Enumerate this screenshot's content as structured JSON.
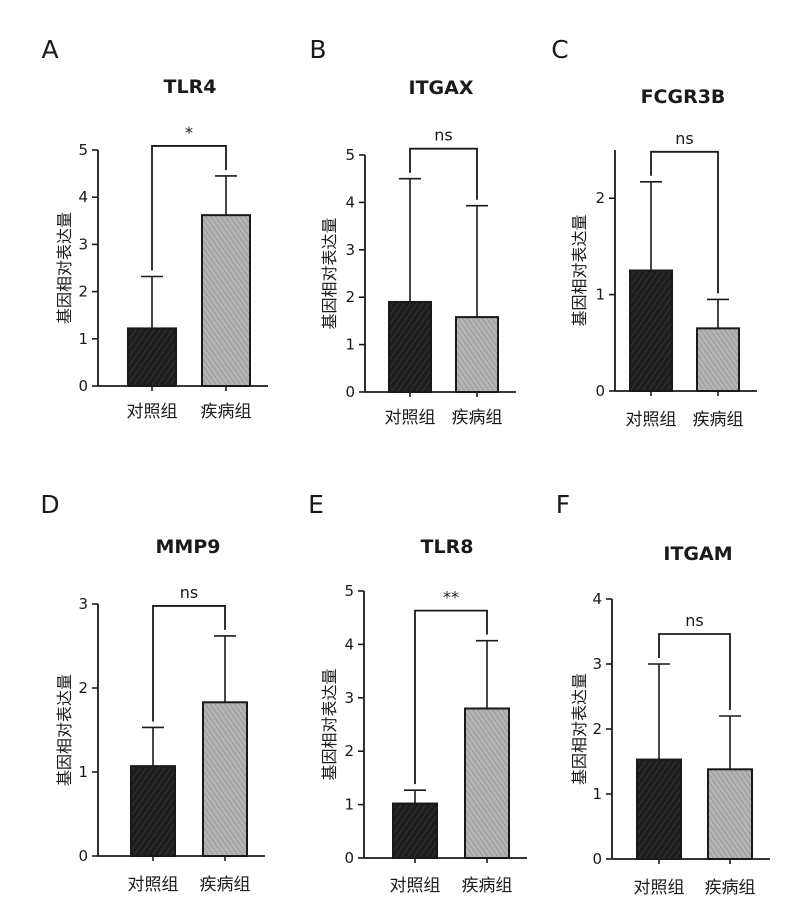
{
  "figure": {
    "panels": [
      {
        "letter": "A"
      },
      {
        "letter": "B"
      },
      {
        "letter": "C"
      },
      {
        "letter": "D"
      },
      {
        "letter": "E"
      },
      {
        "letter": "F"
      }
    ]
  },
  "colors": {
    "control_bar": "#1e1e1e",
    "disease_bar": "#a8a8a8",
    "axis": "#1a1a1a"
  },
  "chart_data": [
    {
      "type": "bar",
      "title": "TLR4",
      "ylabel": "基因相对表达量",
      "xlabel": "",
      "categories": [
        "对照组",
        "疾病组"
      ],
      "values": [
        1.22,
        3.62
      ],
      "error_upper": [
        2.32,
        4.45
      ],
      "ylim": [
        0,
        5
      ],
      "yticks": [
        0,
        1,
        2,
        3,
        4,
        5
      ],
      "significance": "*",
      "grid": false
    },
    {
      "type": "bar",
      "title": "ITGAX",
      "ylabel": "基因相对表达量",
      "xlabel": "",
      "categories": [
        "对照组",
        "疾病组"
      ],
      "values": [
        1.9,
        1.58
      ],
      "error_upper": [
        4.5,
        3.93
      ],
      "ylim": [
        0,
        5
      ],
      "yticks": [
        0,
        1,
        2,
        3,
        4,
        5
      ],
      "significance": "ns",
      "grid": false
    },
    {
      "type": "bar",
      "title": "FCGR3B",
      "ylabel": "基因相对表达量",
      "xlabel": "",
      "categories": [
        "对照组",
        "疾病组"
      ],
      "values": [
        1.25,
        0.65
      ],
      "error_upper": [
        2.17,
        0.95
      ],
      "ylim": [
        0,
        2.5
      ],
      "yticks": [
        0,
        1,
        2
      ],
      "significance": "ns",
      "grid": false
    },
    {
      "type": "bar",
      "title": "MMP9",
      "ylabel": "基因相对表达量",
      "xlabel": "",
      "categories": [
        "对照组",
        "疾病组"
      ],
      "values": [
        1.07,
        1.83
      ],
      "error_upper": [
        1.53,
        2.62
      ],
      "ylim": [
        0,
        3
      ],
      "yticks": [
        0,
        1,
        2,
        3
      ],
      "significance": "ns",
      "grid": false
    },
    {
      "type": "bar",
      "title": "TLR8",
      "ylabel": "基因相对表达量",
      "xlabel": "",
      "categories": [
        "对照组",
        "疾病组"
      ],
      "values": [
        1.02,
        2.8
      ],
      "error_upper": [
        1.27,
        4.07
      ],
      "ylim": [
        0,
        5
      ],
      "yticks": [
        0,
        1,
        2,
        3,
        4,
        5
      ],
      "significance": "**",
      "grid": false
    },
    {
      "type": "bar",
      "title": "ITGAM",
      "ylabel": "基因相对表达量",
      "xlabel": "",
      "categories": [
        "对照组",
        "疾病组"
      ],
      "values": [
        1.53,
        1.38
      ],
      "error_upper": [
        3.0,
        2.2
      ],
      "ylim": [
        0,
        4
      ],
      "yticks": [
        0,
        1,
        2,
        3,
        4
      ],
      "significance": "ns",
      "grid": false
    }
  ]
}
